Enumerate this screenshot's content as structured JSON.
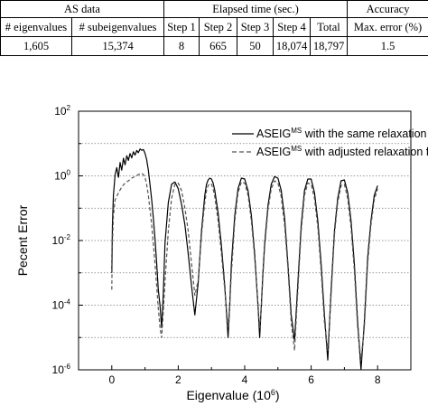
{
  "table": {
    "groups": [
      {
        "label": "AS data",
        "span": 2
      },
      {
        "label": "Elapsed time (sec.)",
        "span": 5
      },
      {
        "label": "Accuracy",
        "span": 1
      }
    ],
    "headers": [
      "# eigenvalues",
      "# subeigenvalues",
      "Step 1",
      "Step 2",
      "Step 3",
      "Step 4",
      "Total",
      "Max. error (%)"
    ],
    "row": [
      "1,605",
      "15,374",
      "8",
      "665",
      "50",
      "18,074",
      "18,797",
      "1.5"
    ]
  },
  "chart_data": {
    "type": "line",
    "xlabel": "Eigenvalue (10",
    "xlabel_sup": "6",
    "xlabel_end": ")",
    "ylabel": "Pecent Error",
    "xlim": [
      -1,
      9
    ],
    "ylim_log10": [
      -6,
      2
    ],
    "y_scale": "log",
    "x_ticks": [
      "0",
      "2",
      "4",
      "6",
      "8"
    ],
    "y_tick_base": "10",
    "y_tick_exponents": [
      "2",
      "0",
      "-2",
      "-4",
      "-6"
    ],
    "grid": "dotted horizontal",
    "legend_position": "top-right",
    "series": [
      {
        "name": "ASEIG",
        "name_sup": "MS",
        "name_rest": " with the same relaxation factors",
        "style": "solid",
        "color": "#000000",
        "x": [
          0.0,
          0.02,
          0.05,
          0.1,
          0.15,
          0.2,
          0.25,
          0.3,
          0.35,
          0.4,
          0.45,
          0.5,
          0.55,
          0.6,
          0.65,
          0.7,
          0.75,
          0.8,
          0.85,
          0.9,
          0.95,
          1.0,
          1.05,
          1.1,
          1.15,
          1.2,
          1.25,
          1.3,
          1.35,
          1.4,
          1.45,
          1.5,
          1.55,
          1.6,
          1.7,
          1.8,
          1.9,
          2.0,
          2.1,
          2.2,
          2.3,
          2.4,
          2.5,
          2.6,
          2.7,
          2.8,
          2.85,
          2.9,
          2.95,
          3.0,
          3.05,
          3.1,
          3.2,
          3.3,
          3.4,
          3.5,
          3.55,
          3.6,
          3.7,
          3.8,
          3.9,
          4.0,
          4.1,
          4.2,
          4.3,
          4.4,
          4.45,
          4.5,
          4.55,
          4.6,
          4.7,
          4.8,
          4.9,
          5.0,
          5.1,
          5.2,
          5.3,
          5.4,
          5.5,
          5.6,
          5.7,
          5.8,
          5.9,
          6.0,
          6.1,
          6.2,
          6.3,
          6.4,
          6.5,
          6.6,
          6.7,
          6.8,
          6.9,
          7.0,
          7.1,
          7.2,
          7.3,
          7.4,
          7.5,
          7.6,
          7.7,
          7.8,
          7.9,
          8.0
        ],
        "y": [
          0.001,
          0.03,
          0.25,
          1.1,
          1.8,
          0.9,
          2.6,
          1.5,
          3.5,
          2.2,
          4.2,
          3.0,
          4.9,
          3.6,
          5.6,
          4.4,
          6.1,
          5.2,
          6.8,
          6.2,
          6.5,
          5.0,
          3.2,
          1.5,
          0.55,
          0.18,
          0.05,
          0.012,
          0.002,
          0.0003,
          0.0001,
          2e-05,
          0.0002,
          0.008,
          0.15,
          0.55,
          0.65,
          0.4,
          0.13,
          0.03,
          0.004,
          0.0004,
          5e-05,
          0.0005,
          0.02,
          0.25,
          0.55,
          0.75,
          0.85,
          0.8,
          0.6,
          0.35,
          0.07,
          0.007,
          0.0004,
          1e-05,
          0.0001,
          0.002,
          0.06,
          0.4,
          0.85,
          0.8,
          0.35,
          0.06,
          0.004,
          0.0001,
          1e-05,
          0.0001,
          0.001,
          0.008,
          0.12,
          0.55,
          0.95,
          0.85,
          0.35,
          0.05,
          0.002,
          5e-05,
          8e-06,
          0.0005,
          0.03,
          0.35,
          0.8,
          0.8,
          0.3,
          0.04,
          0.002,
          5e-05,
          2e-06,
          0.0003,
          0.02,
          0.2,
          0.7,
          0.75,
          0.3,
          0.04,
          0.002,
          3e-05,
          1e-06,
          3e-05,
          0.003,
          0.04,
          0.25,
          0.5
        ]
      },
      {
        "name": "ASEIG",
        "name_sup": "MS",
        "name_rest": " with adjusted relaxation factors",
        "style": "dashed",
        "color": "#555555",
        "x": [
          0.0,
          0.02,
          0.05,
          0.1,
          0.2,
          0.3,
          0.4,
          0.5,
          0.6,
          0.7,
          0.8,
          0.85,
          0.9,
          0.95,
          1.0,
          1.05,
          1.1,
          1.15,
          1.2,
          1.25,
          1.3,
          1.35,
          1.4,
          1.45,
          1.5,
          1.55,
          1.6,
          1.7,
          1.8,
          1.9,
          2.0,
          2.1,
          2.2,
          2.3,
          2.4,
          2.5,
          2.6,
          2.7,
          2.8,
          2.85,
          2.9,
          2.95,
          3.0,
          3.05,
          3.1,
          3.2,
          3.3,
          3.4,
          3.5,
          3.55,
          3.6,
          3.7,
          3.8,
          3.9,
          4.0,
          4.1,
          4.2,
          4.3,
          4.4,
          4.45,
          4.5,
          4.55,
          4.6,
          4.7,
          4.8,
          4.9,
          5.0,
          5.1,
          5.2,
          5.3,
          5.4,
          5.5,
          5.6,
          5.7,
          5.8,
          5.9,
          6.0,
          6.1,
          6.2,
          6.3,
          6.4,
          6.5,
          6.6,
          6.7,
          6.8,
          6.9,
          7.0,
          7.1,
          7.2,
          7.3,
          7.4,
          7.5,
          7.6,
          7.7,
          7.8,
          7.9,
          8.0
        ],
        "y": [
          0.0003,
          0.008,
          0.06,
          0.18,
          0.3,
          0.45,
          0.6,
          0.7,
          0.85,
          0.95,
          1.1,
          1.15,
          1.2,
          1.1,
          0.9,
          0.55,
          0.25,
          0.09,
          0.03,
          0.008,
          0.002,
          0.0004,
          8e-05,
          2e-05,
          1e-05,
          6e-05,
          0.0005,
          0.02,
          0.2,
          0.55,
          0.6,
          0.35,
          0.1,
          0.02,
          0.002,
          0.0002,
          0.0006,
          0.015,
          0.15,
          0.35,
          0.5,
          0.58,
          0.55,
          0.4,
          0.22,
          0.04,
          0.004,
          0.0003,
          2e-05,
          0.0001,
          0.001,
          0.04,
          0.3,
          0.65,
          0.6,
          0.25,
          0.04,
          0.003,
          0.0001,
          2e-05,
          8e-05,
          0.0008,
          0.006,
          0.09,
          0.4,
          0.7,
          0.6,
          0.22,
          0.03,
          0.0015,
          3e-05,
          4e-06,
          0.0003,
          0.02,
          0.25,
          0.6,
          0.55,
          0.2,
          0.025,
          0.0012,
          3e-05,
          4e-06,
          0.0002,
          0.015,
          0.15,
          0.5,
          0.55,
          0.2,
          0.025,
          0.0012,
          2e-05,
          2e-06,
          2e-05,
          0.002,
          0.03,
          0.18,
          0.4
        ]
      }
    ]
  }
}
